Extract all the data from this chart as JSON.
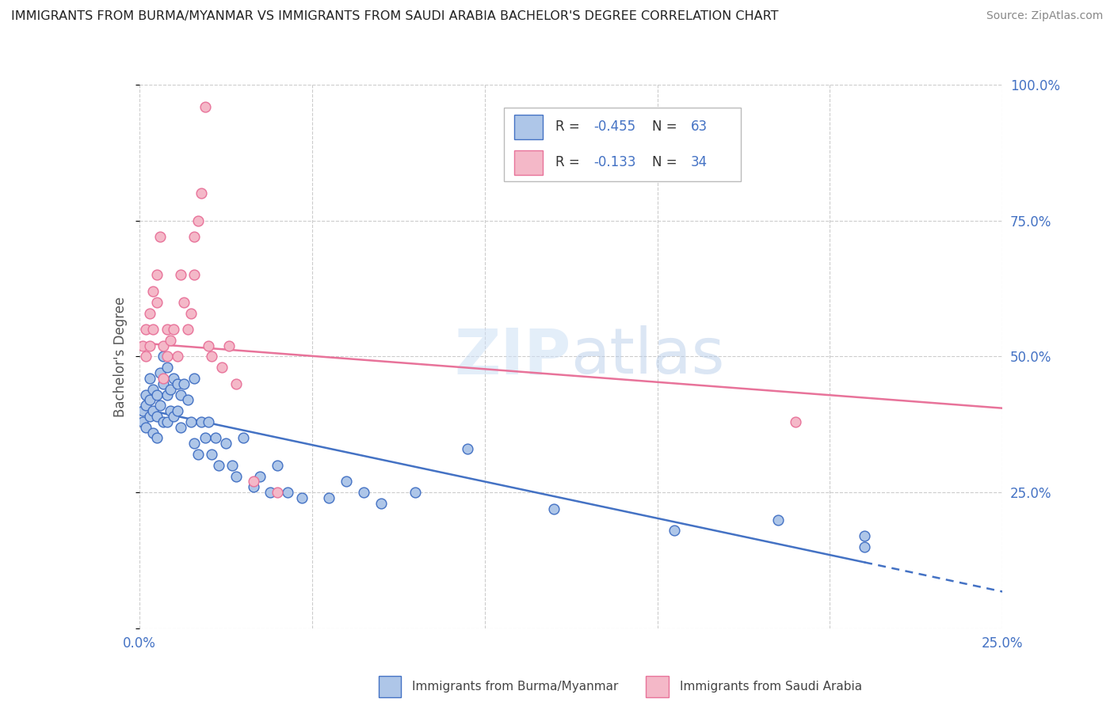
{
  "title": "IMMIGRANTS FROM BURMA/MYANMAR VS IMMIGRANTS FROM SAUDI ARABIA BACHELOR'S DEGREE CORRELATION CHART",
  "source": "Source: ZipAtlas.com",
  "ylabel": "Bachelor's Degree",
  "legend1_label": "Immigrants from Burma/Myanmar",
  "legend2_label": "Immigrants from Saudi Arabia",
  "R1": -0.455,
  "N1": 63,
  "R2": -0.133,
  "N2": 34,
  "color_blue": "#aec6e8",
  "color_blue_line": "#4472c4",
  "color_pink": "#f4b8c8",
  "color_pink_line": "#e8739a",
  "watermark_zip": "ZIP",
  "watermark_atlas": "atlas",
  "xlim": [
    0.0,
    0.25
  ],
  "ylim": [
    0.0,
    1.0
  ],
  "blue_x": [
    0.001,
    0.001,
    0.002,
    0.002,
    0.002,
    0.003,
    0.003,
    0.003,
    0.004,
    0.004,
    0.004,
    0.005,
    0.005,
    0.005,
    0.006,
    0.006,
    0.007,
    0.007,
    0.007,
    0.008,
    0.008,
    0.008,
    0.009,
    0.009,
    0.01,
    0.01,
    0.011,
    0.011,
    0.012,
    0.012,
    0.013,
    0.014,
    0.015,
    0.016,
    0.016,
    0.017,
    0.018,
    0.019,
    0.02,
    0.021,
    0.022,
    0.023,
    0.025,
    0.027,
    0.028,
    0.03,
    0.033,
    0.035,
    0.038,
    0.04,
    0.043,
    0.047,
    0.055,
    0.06,
    0.065,
    0.07,
    0.08,
    0.095,
    0.12,
    0.155,
    0.185,
    0.21,
    0.21
  ],
  "blue_y": [
    0.4,
    0.38,
    0.43,
    0.41,
    0.37,
    0.46,
    0.42,
    0.39,
    0.44,
    0.4,
    0.36,
    0.43,
    0.39,
    0.35,
    0.47,
    0.41,
    0.5,
    0.45,
    0.38,
    0.48,
    0.43,
    0.38,
    0.44,
    0.4,
    0.46,
    0.39,
    0.45,
    0.4,
    0.43,
    0.37,
    0.45,
    0.42,
    0.38,
    0.46,
    0.34,
    0.32,
    0.38,
    0.35,
    0.38,
    0.32,
    0.35,
    0.3,
    0.34,
    0.3,
    0.28,
    0.35,
    0.26,
    0.28,
    0.25,
    0.3,
    0.25,
    0.24,
    0.24,
    0.27,
    0.25,
    0.23,
    0.25,
    0.33,
    0.22,
    0.18,
    0.2,
    0.17,
    0.15
  ],
  "pink_x": [
    0.001,
    0.002,
    0.002,
    0.003,
    0.003,
    0.004,
    0.004,
    0.005,
    0.005,
    0.006,
    0.007,
    0.007,
    0.008,
    0.008,
    0.009,
    0.01,
    0.011,
    0.012,
    0.013,
    0.014,
    0.015,
    0.016,
    0.016,
    0.017,
    0.018,
    0.019,
    0.02,
    0.021,
    0.024,
    0.026,
    0.028,
    0.033,
    0.04,
    0.19
  ],
  "pink_y": [
    0.52,
    0.55,
    0.5,
    0.58,
    0.52,
    0.62,
    0.55,
    0.65,
    0.6,
    0.72,
    0.52,
    0.46,
    0.55,
    0.5,
    0.53,
    0.55,
    0.5,
    0.65,
    0.6,
    0.55,
    0.58,
    0.72,
    0.65,
    0.75,
    0.8,
    0.96,
    0.52,
    0.5,
    0.48,
    0.52,
    0.45,
    0.27,
    0.25,
    0.38
  ]
}
